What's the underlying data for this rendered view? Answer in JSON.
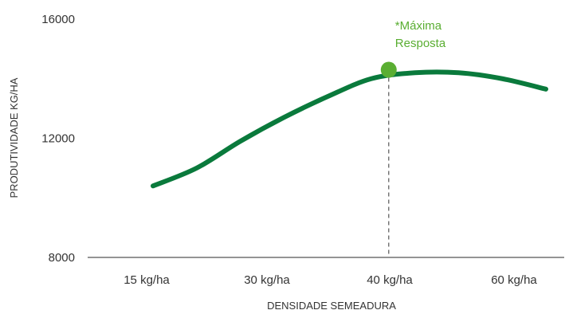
{
  "chart_data": {
    "type": "line",
    "title": "",
    "xlabel": "DENSIDADE SEMEADURA",
    "ylabel": "PRODUTIVIDADE KG/HA",
    "categories": [
      "15 kg/ha",
      "30 kg/ha",
      "40 kg/ha",
      "60 kg/ha"
    ],
    "yticks": [
      "16000",
      "12000",
      "8000"
    ],
    "ytick_values": [
      16000,
      12000,
      8000
    ],
    "ylim": [
      8000,
      16000
    ],
    "grid": false,
    "legend": "none",
    "series": [
      {
        "color": "#0a7a3c",
        "x": [
          15,
          20,
          25,
          30,
          35,
          40,
          45,
          50,
          55,
          60
        ],
        "y": [
          10400,
          11000,
          11900,
          12700,
          13400,
          14000,
          14200,
          14200,
          14000,
          13650
        ]
      }
    ],
    "annotation": {
      "line1": "*Máxima",
      "line2": "Resposta",
      "x": 42,
      "y": 14300,
      "color": "#5aae32"
    }
  }
}
